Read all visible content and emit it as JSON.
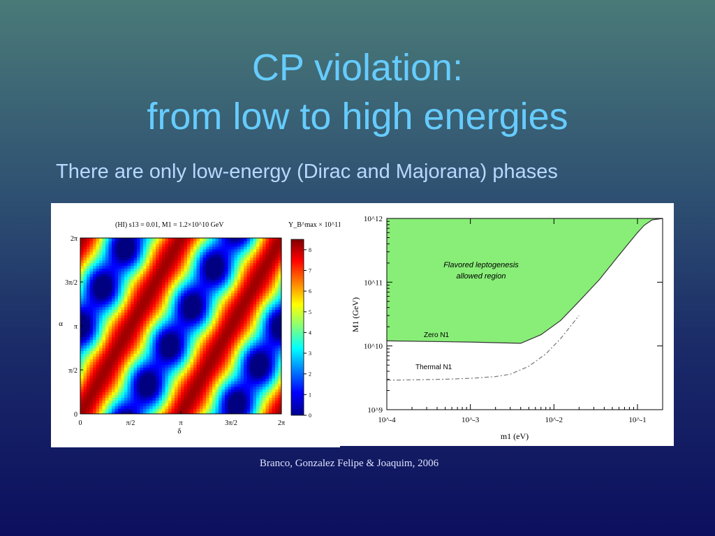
{
  "slide": {
    "title_line1": "CP violation:",
    "title_line2": "from low to high energies",
    "subtitle": "There are only low-energy (Dirac and Majorana) phases",
    "citation": "Branco, Gonzalez Felipe & Joaquim, 2006"
  },
  "chart_data": [
    {
      "type": "heatmap",
      "title": "(HI)  s13 = 0.01, M1 = 1.2×10^10 GeV",
      "xlabel": "δ",
      "ylabel": "α",
      "x_ticks": [
        "0",
        "π/2",
        "π",
        "3π/2",
        "2π"
      ],
      "y_ticks": [
        "0",
        "π/2",
        "π",
        "3π/2",
        "2π"
      ],
      "xlim": [
        0,
        6.2832
      ],
      "ylim": [
        0,
        6.2832
      ],
      "colorbar_label": "Y_B^max × 10^11",
      "colorbar_ticks": [
        "0",
        "1",
        "2",
        "3",
        "4",
        "5",
        "6",
        "7",
        "8"
      ],
      "colorbar_range": [
        0,
        8.5
      ],
      "pattern": "diagonal bands; maxima red (~8), minima blue (~0) along lines α − 2δ = const"
    },
    {
      "type": "line",
      "xlabel": "m1 (eV)",
      "ylabel": "M1 (GeV)",
      "x_scale": "log",
      "y_scale": "log",
      "xlim": [
        0.0001,
        0.2
      ],
      "ylim": [
        1000000000,
        1000000000000
      ],
      "x_ticks": [
        "10^-4",
        "10^-3",
        "10^-2",
        "10^-1"
      ],
      "y_ticks": [
        "10^9",
        "10^10",
        "10^11",
        "10^12"
      ],
      "region_label_line1": "Flavored leptogenesis",
      "region_label_line2": "allowed region",
      "region_color": "#88ee77",
      "series": [
        {
          "name": "Zero N1",
          "style": "solid",
          "x": [
            0.0001,
            0.001,
            0.004,
            0.007,
            0.012,
            0.02,
            0.035,
            0.055,
            0.08,
            0.1,
            0.12,
            0.15,
            0.2
          ],
          "y": [
            12000000000,
            11500000000,
            11000000000,
            15000000000,
            25000000000,
            50000000000,
            110000000000,
            230000000000,
            420000000000,
            600000000000,
            780000000000,
            950000000000,
            1000000000000
          ]
        },
        {
          "name": "Thermal N1",
          "style": "dash-dot",
          "x": [
            0.0001,
            0.0005,
            0.001,
            0.002,
            0.003,
            0.005,
            0.008,
            0.012,
            0.02
          ],
          "y": [
            2900000000,
            3000000000,
            3100000000,
            3300000000,
            3600000000,
            4800000000,
            7500000000,
            13000000000,
            30000000000
          ]
        }
      ]
    }
  ]
}
